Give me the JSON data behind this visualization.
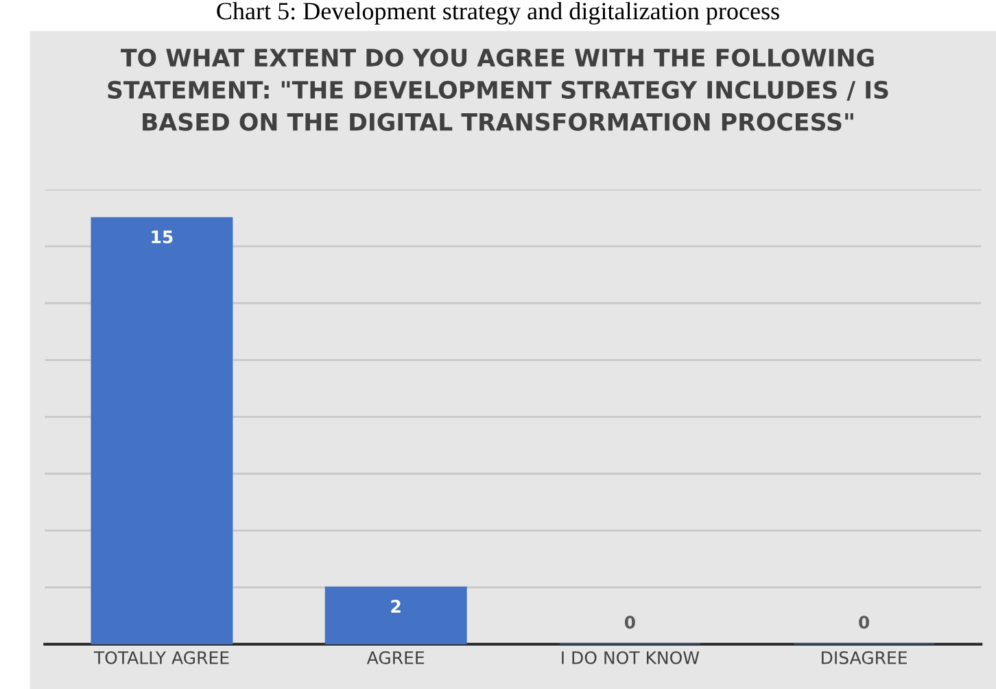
{
  "chart_data": {
    "type": "bar",
    "title": "TO WHAT EXTENT DO YOU AGREE WITH THE FOLLOWING\nSTATEMENT: \"THE DEVELOPMENT STRATEGY INCLUDES / IS\nBASED ON THE DIGITAL TRANSFORMATION PROCESS\"",
    "annotations": [
      "Chart 5: Development strategy and digitalization process"
    ],
    "categories": [
      "TOTALLY AGREE",
      "AGREE",
      "I DO NOT KNOW",
      "DISAGREE"
    ],
    "values": [
      15,
      2,
      0,
      0
    ],
    "color": "#4472c4",
    "data_labels": true,
    "ylim": [
      0,
      16
    ],
    "yticks": [
      {
        "value": 0,
        "label": null
      },
      {
        "value": 2,
        "label": null
      },
      {
        "value": 4,
        "label": null
      },
      {
        "value": 6,
        "label": null
      },
      {
        "value": 8,
        "label": null
      },
      {
        "value": 10,
        "label": null
      },
      {
        "value": 12,
        "label": null
      },
      {
        "value": 14,
        "label": null
      },
      {
        "value": 16,
        "label": null
      }
    ],
    "grid": "y",
    "tick_labels": "x"
  }
}
